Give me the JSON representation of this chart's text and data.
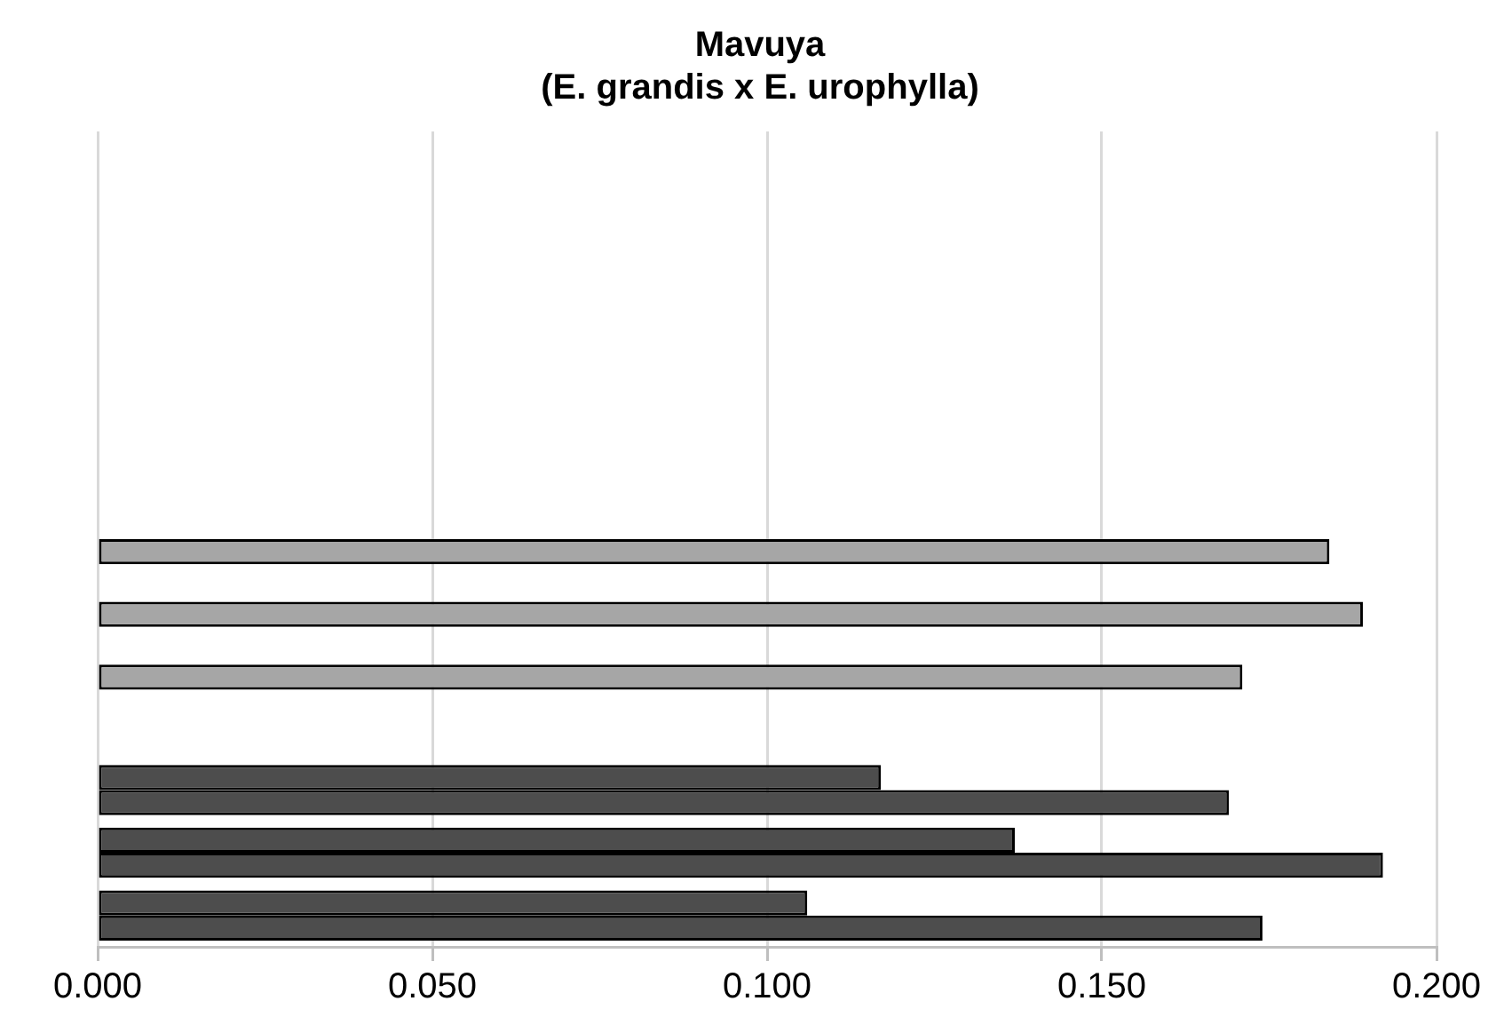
{
  "chart_data": {
    "type": "bar",
    "orientation": "horizontal",
    "title": "Mavuya\n(E. grandis x E. urophylla)",
    "categories": [
      null,
      null,
      null,
      null,
      null,
      null,
      null,
      null,
      null,
      null,
      null,
      null,
      null
    ],
    "series": [
      {
        "color": "#4d4d4d",
        "values": [
          null,
          null,
          null,
          null,
          null,
          null,
          null,
          null,
          null,
          null,
          0.117,
          0.137,
          0.106
        ]
      },
      {
        "colors": [
          null,
          null,
          null,
          null,
          null,
          null,
          "#a6a6a6",
          "#a6a6a6",
          "#a6a6a6",
          null,
          "#4d4d4d",
          "#4d4d4d",
          "#4d4d4d"
        ],
        "values": [
          null,
          null,
          null,
          null,
          null,
          null,
          0.184,
          0.189,
          0.171,
          null,
          0.169,
          0.192,
          0.174
        ]
      }
    ],
    "xlim": [
      0,
      0.2
    ],
    "xticks": [
      {
        "value": 0,
        "label": "0.000"
      },
      {
        "value": 0.05,
        "label": "0.050"
      },
      {
        "value": 0.1,
        "label": "0.100"
      },
      {
        "value": 0.15,
        "label": "0.150"
      },
      {
        "value": 0.2,
        "label": "0.200"
      }
    ],
    "grid": "x",
    "tick_labels": "x"
  }
}
